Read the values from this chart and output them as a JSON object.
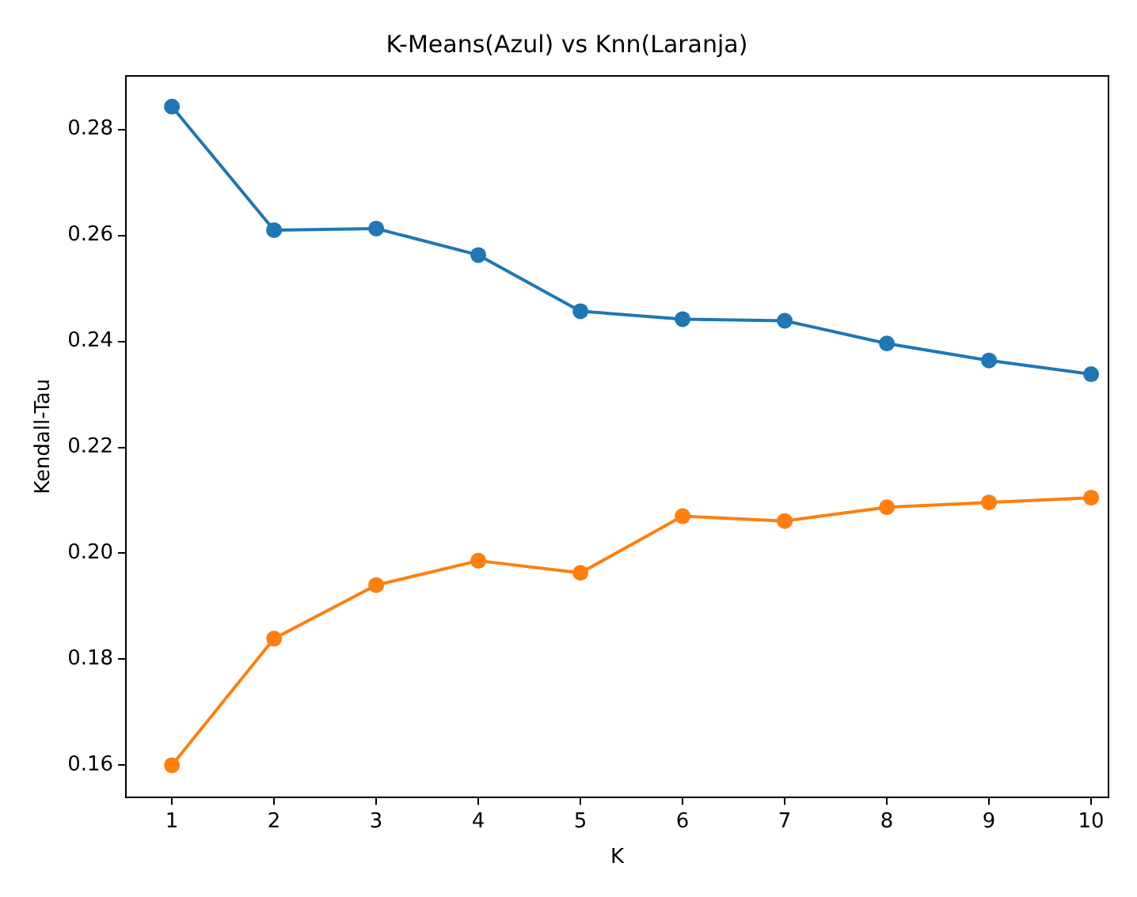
{
  "chart_data": {
    "type": "line",
    "title": "K-Means(Azul) vs Knn(Laranja)",
    "xlabel": "K",
    "ylabel": "Kendall-Tau",
    "x": [
      1,
      2,
      3,
      4,
      5,
      6,
      7,
      8,
      9,
      10
    ],
    "series": [
      {
        "color": "#1f77b4",
        "values": [
          0.2843,
          0.261,
          0.2613,
          0.2563,
          0.2457,
          0.2442,
          0.2439,
          0.2396,
          0.2364,
          0.2338
        ]
      },
      {
        "color": "#ff7f0e",
        "values": [
          0.16,
          0.1839,
          0.194,
          0.1986,
          0.1963,
          0.207,
          0.2061,
          0.2087,
          0.2096,
          0.2105
        ]
      }
    ],
    "xlim": [
      0.55,
      10.17
    ],
    "xticks": [
      1,
      2,
      3,
      4,
      5,
      6,
      7,
      8,
      9,
      10
    ],
    "ylim": [
      0.154,
      0.2901
    ],
    "yticks": [
      0.16,
      0.18,
      {
        "value": 0.2,
        "label": "0.20"
      },
      0.22,
      0.24,
      0.26,
      0.28
    ],
    "marker": "circle",
    "grid": false,
    "legend": false
  }
}
